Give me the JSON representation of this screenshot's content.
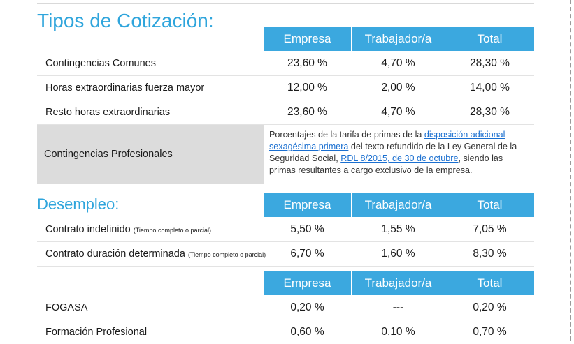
{
  "cotizacion": {
    "title": "Tipos de Cotización:",
    "headers": [
      "Empresa",
      "Trabajador/a",
      "Total"
    ],
    "rows": [
      {
        "label": "Contingencias Comunes",
        "empresa": "23,60 %",
        "trabajador": "4,70 %",
        "total": "28,30 %"
      },
      {
        "label": "Horas extraordinarias fuerza mayor",
        "empresa": "12,00 %",
        "trabajador": "2,00 %",
        "total": "14,00 %"
      },
      {
        "label": "Resto horas extraordinarias",
        "empresa": "23,60 %",
        "trabajador": "4,70 %",
        "total": "28,30 %"
      }
    ],
    "profesionales": {
      "label": "Contingencias Profesionales",
      "text_1": "Porcentajes de la tarifa de primas de la ",
      "link_1": "disposición adicional sexagésima primera",
      "text_2": " del texto refundido de la Ley General de la Seguridad Social, ",
      "link_2": "RDL 8/2015, de 30 de octubre",
      "text_3": ", siendo las primas resultantes a cargo exclusivo de la empresa."
    }
  },
  "desempleo": {
    "title": "Desempleo:",
    "headers": [
      "Empresa",
      "Trabajador/a",
      "Total"
    ],
    "rows": [
      {
        "label": "Contrato indefinido",
        "note": "(Tiempo completo o parcial)",
        "empresa": "5,50 %",
        "trabajador": "1,55 %",
        "total": "7,05 %"
      },
      {
        "label": "Contrato duración determinada",
        "note": "(Tiempo completo o parcial)",
        "empresa": "6,70 %",
        "trabajador": "1,60 %",
        "total": "8,30 %"
      }
    ]
  },
  "otros": {
    "headers": [
      "Empresa",
      "Trabajador/a",
      "Total"
    ],
    "rows": [
      {
        "label": "FOGASA",
        "empresa": "0,20 %",
        "trabajador": "---",
        "total": "0,20 %"
      },
      {
        "label": "Formación Profesional",
        "empresa": "0,60 %",
        "trabajador": "0,10 %",
        "total": "0,70 %"
      }
    ]
  }
}
